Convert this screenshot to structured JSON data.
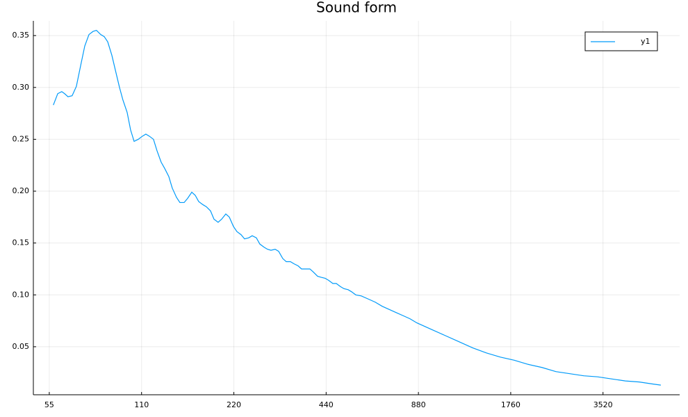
{
  "chart_data": {
    "type": "line",
    "title": "Sound form",
    "xscale": "log",
    "grid": true,
    "legend": "top-right",
    "x": [
      56.7,
      58.6,
      60.4,
      61.7,
      63.3,
      65.3,
      67.4,
      69.6,
      71.8,
      74.1,
      76.4,
      78.4,
      80.9,
      83.1,
      85.3,
      88.0,
      90.3,
      93.2,
      95.6,
      98.7,
      101.3,
      104.0,
      107.3,
      110.7,
      113.6,
      116.6,
      120.3,
      123.5,
      127.4,
      130.8,
      135.0,
      138.5,
      143.0,
      146.7,
      151.4,
      155.4,
      160.4,
      164.6,
      168.9,
      174.3,
      178.9,
      184.6,
      189.5,
      195.5,
      200.7,
      207.1,
      212.6,
      219.3,
      225.1,
      232.3,
      238.4,
      246.0,
      252.5,
      260.5,
      267.4,
      275.9,
      283.2,
      290.7,
      300.0,
      307.9,
      317.7,
      326.1,
      336.5,
      345.4,
      356.4,
      365.8,
      377.4,
      389.4,
      399.7,
      412.5,
      423.3,
      436.8,
      448.3,
      462.6,
      474.8,
      489.9,
      502.9,
      518.9,
      532.6,
      549.6,
      573.0,
      603.7,
      636.1,
      670.2,
      706.0,
      743.8,
      783.6,
      825.6,
      869.9,
      965.6,
      1072,
      1190,
      1321,
      1466,
      1628,
      1807,
      2006,
      2226,
      2471,
      2743,
      3045,
      3379,
      3752,
      4164,
      4623,
      5131,
      5434
    ],
    "series": [
      {
        "name": "y1",
        "color": "#009af9",
        "values": [
          0.283,
          0.294,
          0.296,
          0.294,
          0.291,
          0.292,
          0.301,
          0.321,
          0.34,
          0.351,
          0.354,
          0.355,
          0.351,
          0.349,
          0.344,
          0.331,
          0.317,
          0.3,
          0.288,
          0.276,
          0.259,
          0.248,
          0.25,
          0.253,
          0.255,
          0.253,
          0.25,
          0.239,
          0.228,
          0.222,
          0.214,
          0.203,
          0.194,
          0.189,
          0.189,
          0.193,
          0.199,
          0.196,
          0.19,
          0.187,
          0.185,
          0.181,
          0.173,
          0.17,
          0.173,
          0.178,
          0.175,
          0.166,
          0.161,
          0.158,
          0.154,
          0.155,
          0.157,
          0.155,
          0.149,
          0.146,
          0.144,
          0.143,
          0.144,
          0.142,
          0.135,
          0.132,
          0.132,
          0.13,
          0.128,
          0.125,
          0.125,
          0.125,
          0.122,
          0.118,
          0.117,
          0.116,
          0.114,
          0.111,
          0.111,
          0.108,
          0.106,
          0.105,
          0.103,
          0.1,
          0.099,
          0.096,
          0.093,
          0.089,
          0.086,
          0.083,
          0.08,
          0.077,
          0.073,
          0.067,
          0.061,
          0.055,
          0.049,
          0.044,
          0.04,
          0.037,
          0.033,
          0.03,
          0.026,
          0.024,
          0.022,
          0.021,
          0.019,
          0.017,
          0.016,
          0.014,
          0.013
        ]
      }
    ],
    "xlim": [
      48.8,
      6260
    ],
    "xticks": [
      55,
      110,
      220,
      440,
      880,
      1760,
      3520
    ],
    "ylim": [
      0.0037,
      0.3642
    ],
    "yticks": [
      0.05,
      {
        "value": 0.1,
        "label": "0.10"
      },
      0.15,
      {
        "value": 0.2,
        "label": "0.20"
      },
      0.25,
      {
        "value": 0.3,
        "label": "0.30"
      },
      0.35
    ]
  }
}
